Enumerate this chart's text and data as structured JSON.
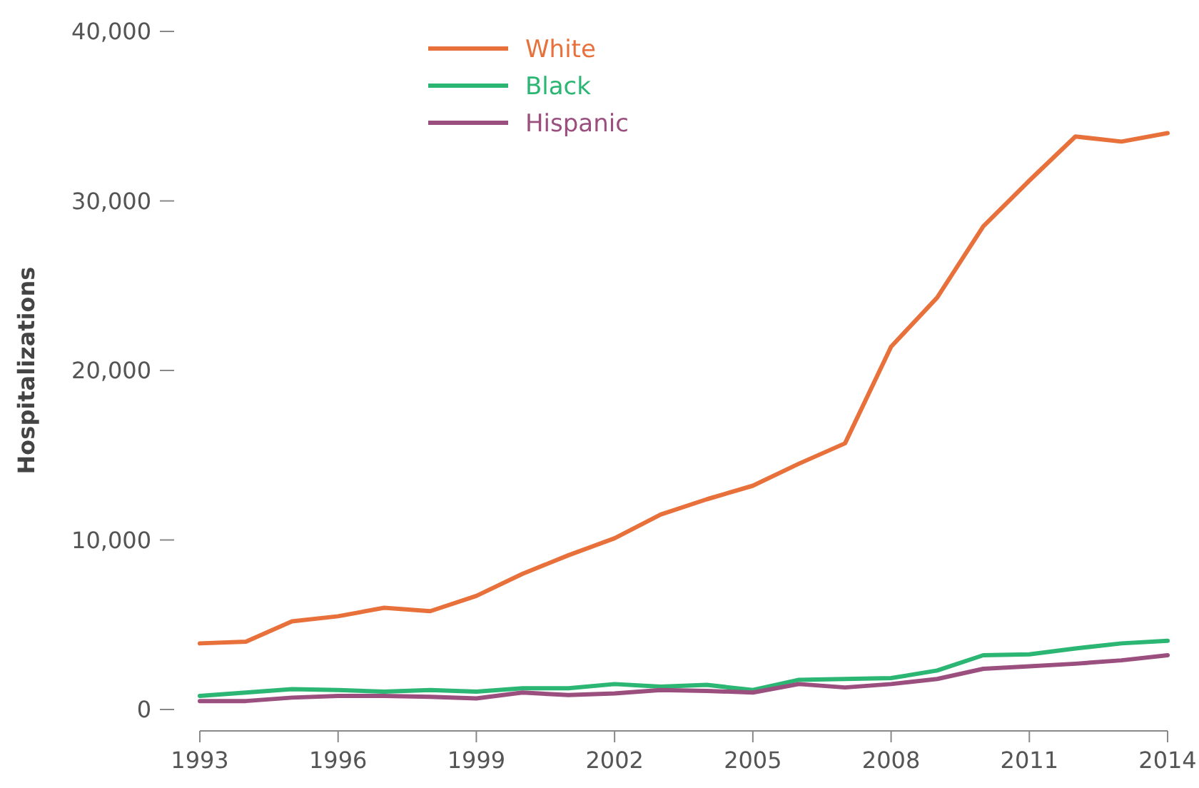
{
  "chart_data": {
    "type": "line",
    "ylabel": "Hospitalizations",
    "x": [
      1993,
      1994,
      1995,
      1996,
      1997,
      1998,
      1999,
      2000,
      2001,
      2002,
      2003,
      2004,
      2005,
      2006,
      2007,
      2008,
      2009,
      2010,
      2011,
      2012,
      2013,
      2014
    ],
    "xlim": [
      1993,
      2014
    ],
    "xticks": [
      1993,
      1996,
      1999,
      2002,
      2005,
      2008,
      2011,
      2014
    ],
    "ylim": [
      0,
      40000
    ],
    "yticks": [
      {
        "value": 0,
        "label": "0"
      },
      {
        "value": 10000,
        "label": "10,000"
      },
      {
        "value": 20000,
        "label": "20,000"
      },
      {
        "value": 30000,
        "label": "30,000"
      },
      {
        "value": 40000,
        "label": "40,000"
      }
    ],
    "grid": false,
    "legend": "top left",
    "marker": "none",
    "line_style": "solid",
    "series": [
      {
        "name": "White",
        "color": "#e8703a",
        "values": [
          3900,
          4000,
          5200,
          5500,
          6000,
          5800,
          6700,
          8000,
          9100,
          10100,
          11500,
          12400,
          13200,
          14500,
          15700,
          21400,
          24300,
          28500,
          31200,
          33800,
          33500,
          34000
        ]
      },
      {
        "name": "Black",
        "color": "#2bb673",
        "values": [
          800,
          1000,
          1200,
          1150,
          1050,
          1150,
          1050,
          1250,
          1250,
          1500,
          1350,
          1450,
          1150,
          1750,
          1800,
          1850,
          2300,
          3200,
          3250,
          3600,
          3900,
          4050
        ]
      },
      {
        "name": "Hispanic",
        "color": "#9b4f7f",
        "values": [
          500,
          500,
          700,
          800,
          800,
          750,
          650,
          1000,
          850,
          950,
          1150,
          1100,
          1000,
          1500,
          1300,
          1500,
          1800,
          2400,
          2550,
          2700,
          2900,
          3200
        ]
      }
    ]
  }
}
